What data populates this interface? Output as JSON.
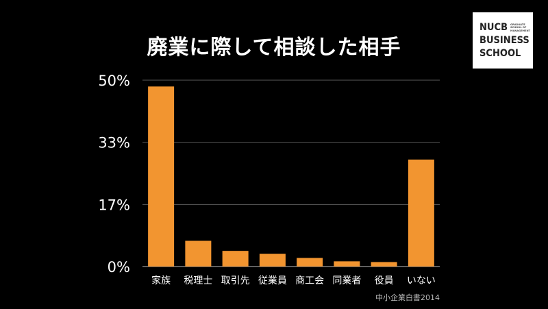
{
  "slide": {
    "title": "廃業に際して相談した相手",
    "source": "中小企業白書2014"
  },
  "logo": {
    "line1": "NUCB",
    "line2": "BUSINESS",
    "line3": "SCHOOL",
    "small_lines": [
      "GRADUATE",
      "SCHOOL OF",
      "MANAGEMENT"
    ]
  },
  "colors": {
    "background": "#000000",
    "bar": "#f29530",
    "text": "#ffffff",
    "gridline": "#5a5a5a"
  },
  "chart_data": {
    "type": "bar",
    "title": "廃業に際して相談した相手",
    "categories": [
      "家族",
      "税理士",
      "取引先",
      "従業員",
      "商工会",
      "同業者",
      "役員",
      "いない"
    ],
    "values": [
      48.3,
      6.9,
      4.2,
      3.4,
      2.3,
      1.4,
      1.2,
      28.7
    ],
    "ytick_labels": [
      "0%",
      "17%",
      "33%",
      "50%"
    ],
    "ytick_values": [
      0,
      16.667,
      33.333,
      50
    ],
    "ylim": [
      0,
      50
    ],
    "grid": true,
    "legend": "none",
    "xlabel": "",
    "ylabel": ""
  }
}
